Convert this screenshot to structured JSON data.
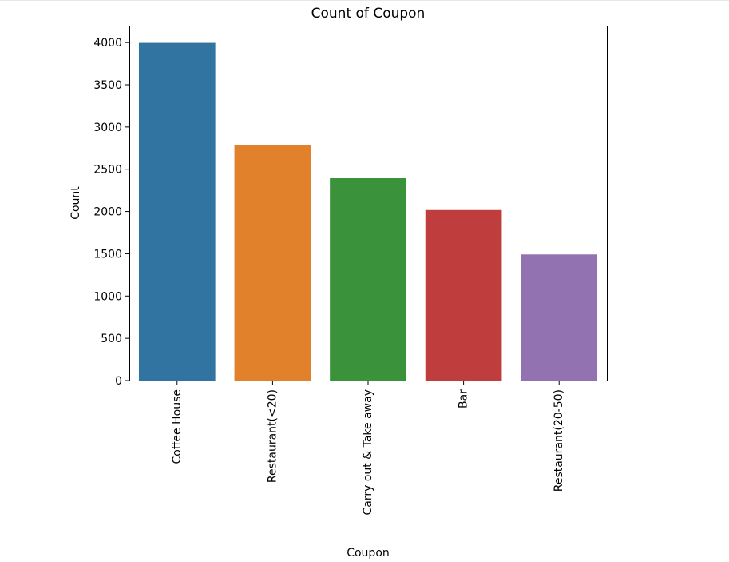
{
  "chart_data": {
    "type": "bar",
    "title": "Count of Coupon",
    "xlabel": "Coupon",
    "ylabel": "Count",
    "categories": [
      "Coffee House",
      "Restaurant(<20)",
      "Carry out & Take away",
      "Bar",
      "Restaurant(20-50)"
    ],
    "values": [
      3996,
      2786,
      2393,
      2017,
      1492
    ],
    "colors": [
      "#3274a1",
      "#e1812c",
      "#3a923a",
      "#c03d3e",
      "#9372b2"
    ],
    "ylim": [
      0,
      4200
    ],
    "yticks": [
      0,
      500,
      1000,
      1500,
      2000,
      2500,
      3000,
      3500,
      4000
    ],
    "ytick_labels": [
      "0",
      "500",
      "1000",
      "1500",
      "2000",
      "2500",
      "3000",
      "3500",
      "4000"
    ],
    "grid": false,
    "legend": "none"
  }
}
